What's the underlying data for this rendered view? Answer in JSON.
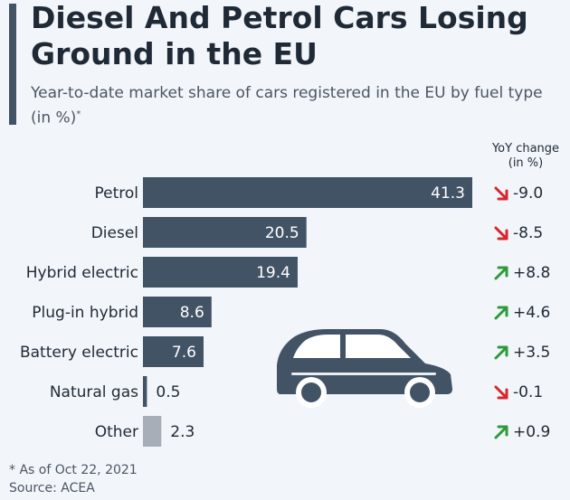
{
  "title": "Diesel And Petrol Cars Losing\nGround in the EU",
  "subtitle": "Year-to-date market share of cars registered in the EU by fuel type (in %)",
  "subtitle_mark": "*",
  "yoy_header_line1": "YoY change",
  "yoy_header_line2": "(in %)",
  "footnote": "* As of Oct 22, 2021",
  "source": "Source: ACEA",
  "colors": {
    "bar": "#435366",
    "bar_other": "#a6aeb8",
    "up": "#2e9b3a",
    "down": "#d6262e",
    "accent": "#435366"
  },
  "car_icon": "car-icon",
  "chart_data": {
    "type": "bar",
    "orientation": "horizontal",
    "categories": [
      "Petrol",
      "Diesel",
      "Hybrid electric",
      "Plug-in hybrid",
      "Battery electric",
      "Natural gas",
      "Other"
    ],
    "values": [
      41.3,
      20.5,
      19.4,
      8.6,
      7.6,
      0.5,
      2.3
    ],
    "value_labels": [
      "41.3",
      "20.5",
      "19.4",
      "8.6",
      "7.6",
      "0.5",
      "2.3"
    ],
    "yoy_change": [
      -9.0,
      -8.5,
      8.8,
      4.6,
      3.5,
      -0.1,
      0.9
    ],
    "yoy_labels": [
      "-9.0",
      "-8.5",
      "+8.8",
      "+4.6",
      "+3.5",
      "-0.1",
      "+0.9"
    ],
    "xlim": [
      0,
      41.3
    ],
    "grid": false,
    "legend": "none"
  }
}
